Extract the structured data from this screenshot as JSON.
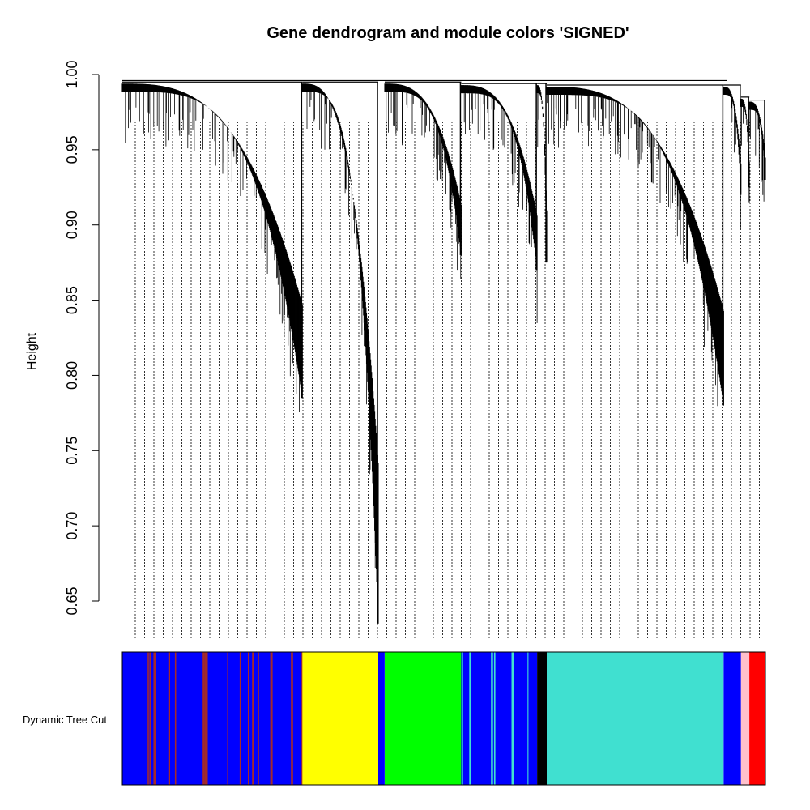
{
  "chart_data": {
    "type": "dendrogram",
    "title": "Gene dendrogram and module colors 'SIGNED'",
    "ylabel": "Height",
    "ylim": [
      0.62,
      1.0
    ],
    "yticks": [
      "0.65",
      "0.70",
      "0.75",
      "0.80",
      "0.85",
      "0.90",
      "0.95",
      "1.00"
    ],
    "ytick_values": [
      0.65,
      0.7,
      0.75,
      0.8,
      0.85,
      0.9,
      0.95,
      1.0
    ],
    "grid": false,
    "color_row_label": "Dynamic Tree Cut",
    "module_colors": {
      "blue": "#0000ff",
      "brown": "#a52a2a",
      "yellow": "#ffff00",
      "green": "#00ff00",
      "turquoise": "#40e0d0",
      "black": "#000000",
      "pink": "#ffc0cb",
      "red": "#ff0000",
      "grey": "#bebebe"
    },
    "modules": [
      {
        "name": "blue",
        "start": 0.0,
        "end": 0.28,
        "join_height": 0.785,
        "top_height": 0.995,
        "mix": "brown"
      },
      {
        "name": "yellow",
        "start": 0.28,
        "end": 0.398,
        "join_height": 0.635,
        "top_height": 0.995,
        "mix": null
      },
      {
        "name": "green",
        "start": 0.408,
        "end": 0.527,
        "join_height": 0.88,
        "top_height": 0.995,
        "mix": null
      },
      {
        "name": "blue",
        "start": 0.527,
        "end": 0.645,
        "join_height": 0.87,
        "top_height": 0.994,
        "mix": "turquoise"
      },
      {
        "name": "black",
        "start": 0.645,
        "end": 0.66,
        "join_height": 0.875,
        "top_height": 0.994,
        "mix": null
      },
      {
        "name": "turquoise",
        "start": 0.66,
        "end": 0.935,
        "join_height": 0.78,
        "top_height": 0.993,
        "mix": null
      },
      {
        "name": "blue",
        "start": 0.935,
        "end": 0.962,
        "join_height": 0.92,
        "top_height": 0.993,
        "mix": null
      },
      {
        "name": "pink",
        "start": 0.962,
        "end": 0.975,
        "join_height": 0.925,
        "top_height": 0.985,
        "mix": null
      },
      {
        "name": "red",
        "start": 0.975,
        "end": 1.0,
        "join_height": 0.93,
        "top_height": 0.983,
        "mix": null
      }
    ],
    "root_height": 0.996
  }
}
